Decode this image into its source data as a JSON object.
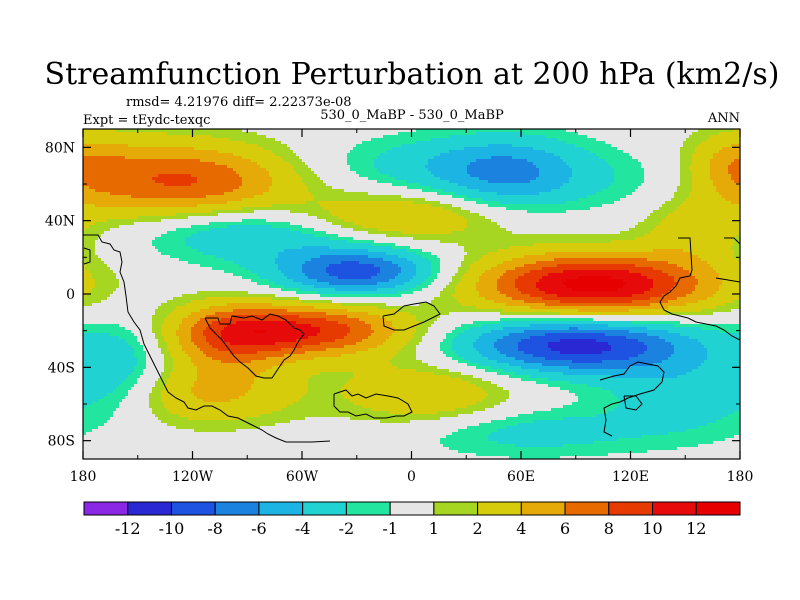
{
  "chart_data": {
    "type": "contour-map",
    "title": "Streamfunction Perturbation at 200 hPa (km2/s)",
    "stats_text": "rmsd= 4.21976 diff= 2.22373e-08",
    "experiment": "Expt = tEydc-texqc",
    "case": "530_0_MaBP - 530_0_MaBP",
    "season": "ANN",
    "xlim": [
      -180,
      180
    ],
    "ylim": [
      -90,
      90
    ],
    "x_ticks": [
      {
        "value": -180,
        "label": "180"
      },
      {
        "value": -120,
        "label": "120W"
      },
      {
        "value": -60,
        "label": "60W"
      },
      {
        "value": 0,
        "label": "0"
      },
      {
        "value": 60,
        "label": "60E"
      },
      {
        "value": 120,
        "label": "120E"
      },
      {
        "value": 180,
        "label": "180"
      }
    ],
    "y_ticks": [
      {
        "value": 80,
        "label": "80N"
      },
      {
        "value": 40,
        "label": "40N"
      },
      {
        "value": 0,
        "label": "0"
      },
      {
        "value": -40,
        "label": "40S"
      },
      {
        "value": -80,
        "label": "80S"
      }
    ],
    "levels": [
      -12,
      -10,
      -8,
      -6,
      -4,
      -2,
      -1,
      1,
      2,
      4,
      6,
      8,
      10,
      12
    ],
    "level_labels": [
      "-12",
      "-10",
      "-8",
      "-6",
      "-4",
      "-2",
      "-1",
      "1",
      "2",
      "4",
      "6",
      "8",
      "10",
      "12"
    ],
    "colors": [
      "#8a28e6",
      "#2a28d2",
      "#1e52e0",
      "#1c82e0",
      "#1cb4e2",
      "#20d2d2",
      "#22e6a0",
      "#e6e6e6",
      "#a6d622",
      "#d6cc0c",
      "#e6aa08",
      "#e66a00",
      "#e63a00",
      "#e60a0a",
      "#e60000"
    ],
    "anomalies": [
      {
        "lon": -150,
        "lat": 62,
        "value": 6,
        "sx": 45,
        "sy": 16
      },
      {
        "lon": -105,
        "lat": 60,
        "value": 4,
        "sx": 35,
        "sy": 14
      },
      {
        "lon": 15,
        "lat": 70,
        "value": -3,
        "sx": 45,
        "sy": 12
      },
      {
        "lon": 55,
        "lat": 65,
        "value": -5,
        "sx": 28,
        "sy": 14
      },
      {
        "lon": 135,
        "lat": 62,
        "value": -2,
        "sx": 38,
        "sy": 14
      },
      {
        "lon": 178,
        "lat": 72,
        "value": 3,
        "sx": 18,
        "sy": 12
      },
      {
        "lon": -85,
        "lat": 35,
        "value": -5,
        "sx": 45,
        "sy": 12
      },
      {
        "lon": -30,
        "lat": 12,
        "value": -9,
        "sx": 30,
        "sy": 9
      },
      {
        "lon": -15,
        "lat": 42,
        "value": 5,
        "sx": 45,
        "sy": 10
      },
      {
        "lon": 155,
        "lat": 35,
        "value": 3,
        "sx": 20,
        "sy": 12
      },
      {
        "lon": 100,
        "lat": 5,
        "value": 13,
        "sx": 45,
        "sy": 12
      },
      {
        "lon": -100,
        "lat": -25,
        "value": 5,
        "sx": 22,
        "sy": 14
      },
      {
        "lon": -60,
        "lat": -20,
        "value": 10,
        "sx": 40,
        "sy": 10
      },
      {
        "lon": -110,
        "lat": -55,
        "value": 4,
        "sx": 35,
        "sy": 12
      },
      {
        "lon": 10,
        "lat": -55,
        "value": 4,
        "sx": 35,
        "sy": 14
      },
      {
        "lon": -160,
        "lat": -40,
        "value": -3,
        "sx": 18,
        "sy": 18
      },
      {
        "lon": 90,
        "lat": -28,
        "value": -11,
        "sx": 45,
        "sy": 11
      },
      {
        "lon": 150,
        "lat": -55,
        "value": -3,
        "sx": 30,
        "sy": 16
      },
      {
        "lon": 60,
        "lat": -75,
        "value": -3,
        "sx": 50,
        "sy": 10
      }
    ]
  }
}
